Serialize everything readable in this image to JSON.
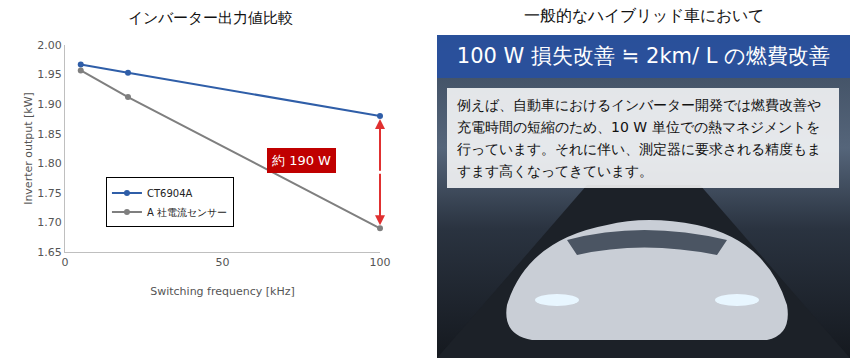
{
  "chart_data": {
    "type": "line",
    "title": "インバーター出力値比較",
    "x_label": "Switching frequency [kHz]",
    "y_label": "Inverter output [kW]",
    "x": [
      5,
      20,
      100
    ],
    "series": [
      {
        "name": "CT6904A",
        "color": "#2f5ea8",
        "marker": "circle",
        "values": [
          1.967,
          1.953,
          1.88
        ]
      },
      {
        "name": "A 社電流センサー",
        "color": "#7f7f7f",
        "marker": "circle",
        "values": [
          1.957,
          1.912,
          1.69
        ]
      }
    ],
    "xlim": [
      0,
      100
    ],
    "xticks": [
      0,
      50,
      100
    ],
    "ylim": [
      1.65,
      2.0
    ],
    "yticks": [
      1.65,
      {
        "value": 1.7,
        "label": "1.70"
      },
      1.75,
      {
        "value": 1.8,
        "label": "1.80"
      },
      1.85,
      {
        "value": 1.9,
        "label": "1.90"
      },
      1.95,
      {
        "value": 2.0,
        "label": "2.00"
      }
    ],
    "grid": false,
    "legend": "lower left",
    "annotations": [
      "約 190 W"
    ]
  },
  "panel": {
    "title": "一般的なハイブリッド車において",
    "banner": "100 W 損失改善 ≒ 2km/ L の燃費改善",
    "body": "例えば、自動車におけるインバーター開発では燃費改善や充電時間の短縮のため、10 W 単位での熱マネジメントを行っています。それに伴い、測定器に要求される精度もますます高くなってきています。"
  }
}
